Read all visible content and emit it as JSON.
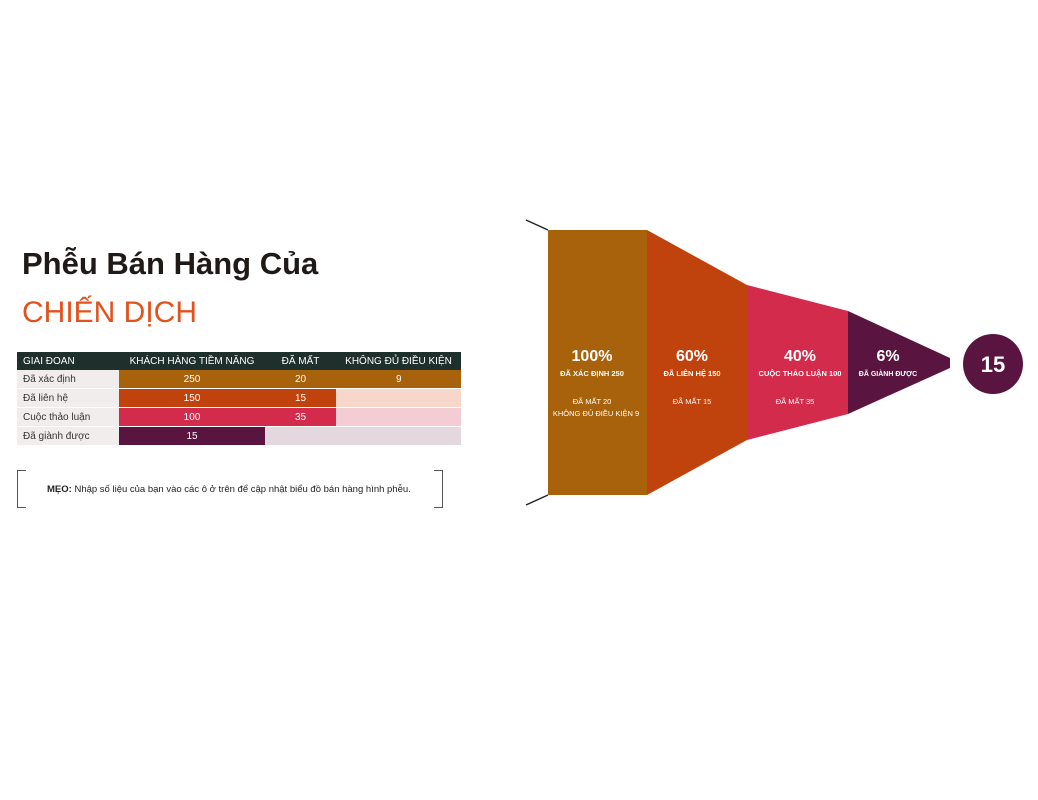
{
  "title": "Phễu Bán Hàng Của",
  "subtitle": "CHIẾN DỊCH",
  "table": {
    "headers": [
      "GIAI ĐOAN",
      "KHÁCH HÀNG TIỀM NĂNG",
      "ĐÃ MẤT",
      "KHÔNG ĐỦ ĐIỀU KIỆN"
    ],
    "rows": [
      {
        "stage": "Đã xác định",
        "prospects": "250",
        "lost": "20",
        "unqualified": "9"
      },
      {
        "stage": "Đã liên hệ",
        "prospects": "150",
        "lost": "15",
        "unqualified": ""
      },
      {
        "stage": "Cuộc thảo luận",
        "prospects": "100",
        "lost": "35",
        "unqualified": ""
      },
      {
        "stage": "Đã giành được",
        "prospects": "15",
        "lost": "",
        "unqualified": ""
      }
    ]
  },
  "tip": {
    "label": "MẸO:",
    "text": " Nhập số liệu của bạn vào các ô ở trên để cập nhật biểu đồ bán hàng hình phễu."
  },
  "funnel": {
    "stages": [
      {
        "percent": "100%",
        "label": "ĐÃ XÁC ĐỊNH 250",
        "detail1": "ĐÃ MẤT 20",
        "detail2": "KHÔNG ĐỦ ĐIỀU KIỆN 9",
        "color": "#a8620c"
      },
      {
        "percent": "60%",
        "label": "ĐÃ LIÊN HỆ 150",
        "detail1": "ĐÃ MẤT 15",
        "detail2": "",
        "color": "#c0430d"
      },
      {
        "percent": "40%",
        "label": "CUỘC THẢO LUẬN 100",
        "detail1": "ĐÃ MẤT 35",
        "detail2": "",
        "color": "#d22b4c"
      },
      {
        "percent": "6%",
        "label": "ĐÃ GIÀNH ĐƯỢC",
        "detail1": "",
        "detail2": "",
        "color": "#5a1440"
      }
    ],
    "result": "15",
    "result_color": "#5a1440"
  }
}
